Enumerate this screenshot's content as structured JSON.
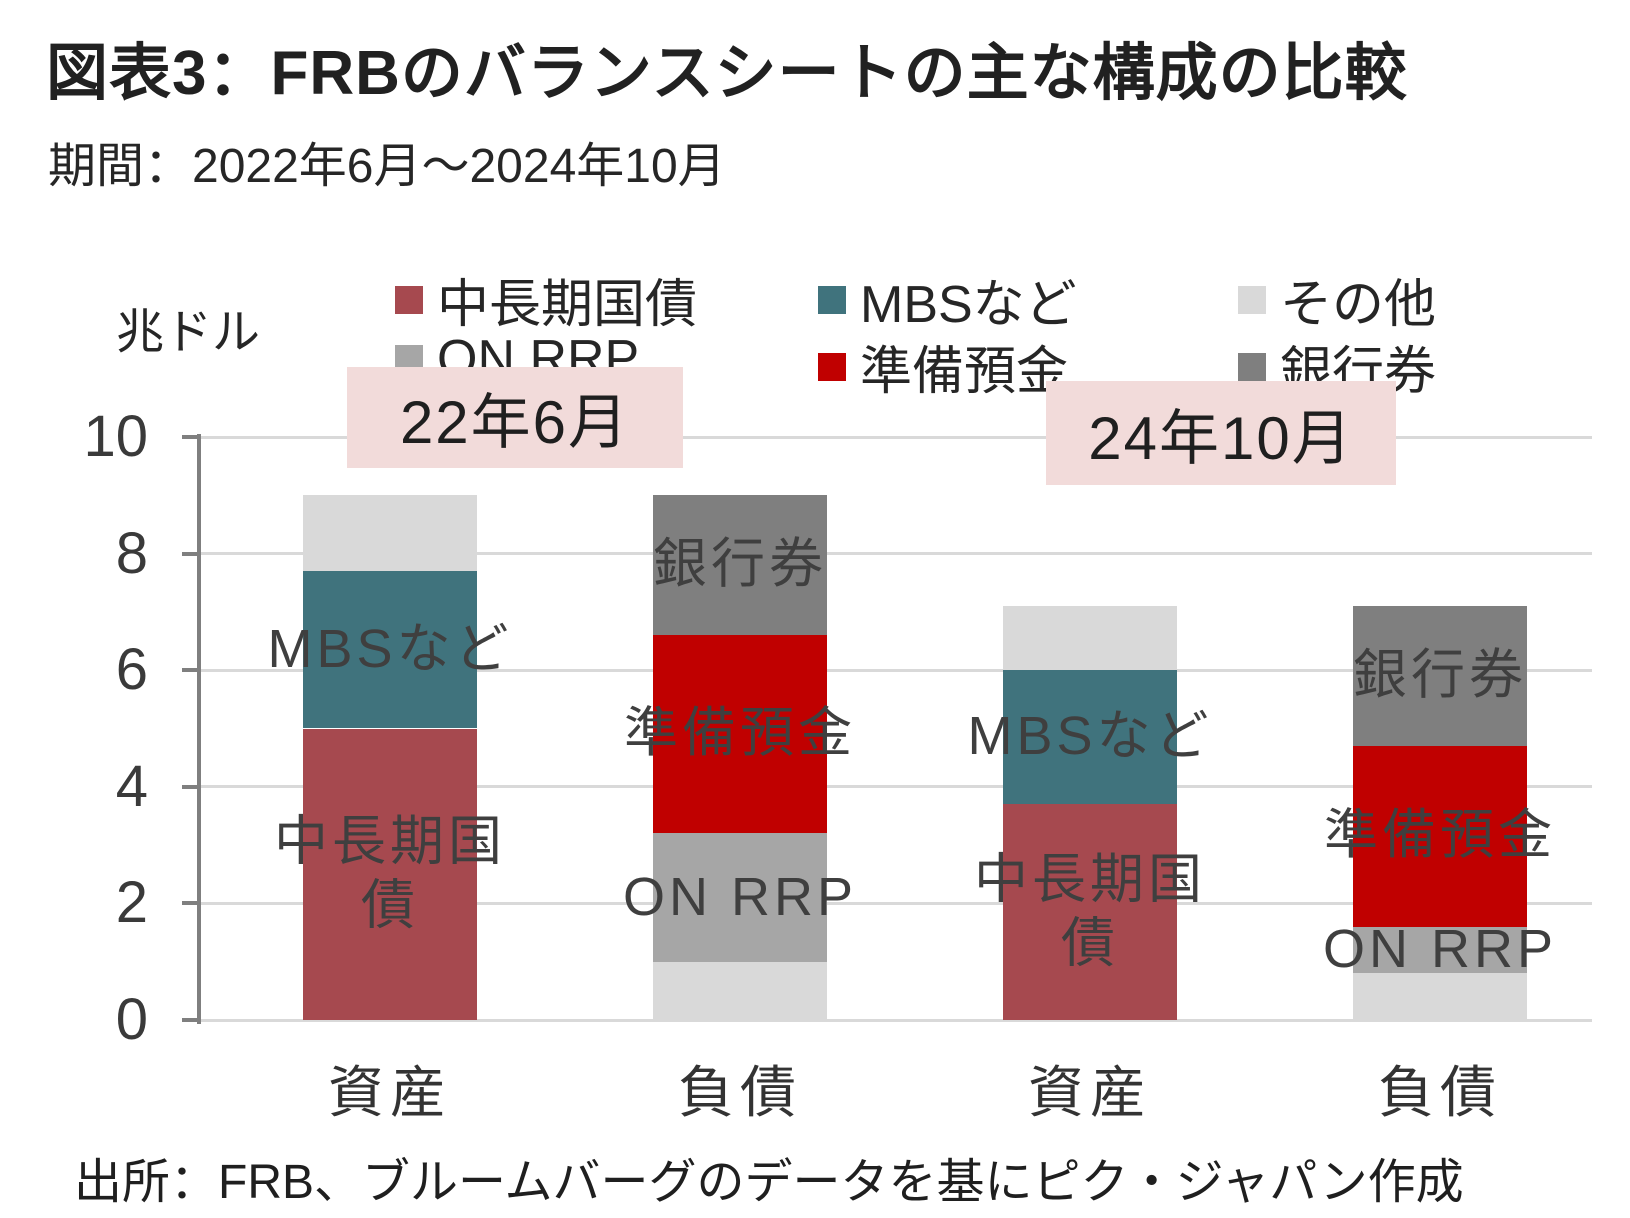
{
  "title": "図表3：FRBのバランスシートの主な構成の比較",
  "subtitle": "期間：2022年6月～2024年10月",
  "unit_label": "兆ドル",
  "source": "出所：FRB、ブルームバーグのデータを基にピク・ジャパン作成",
  "banners": [
    {
      "label": "22年6月"
    },
    {
      "label": "24年10月"
    }
  ],
  "colors": {
    "treasury": "#A6494F",
    "mbs": "#40737D",
    "other": "#D9D9D9",
    "on_rrp": "#A6A6A6",
    "reserves": "#C00000",
    "banknotes": "#7F7F7F",
    "banner_bg": "#F2DBDA",
    "gridline": "#D9D9D9",
    "axis": "#7F7F7F"
  },
  "chart_data": {
    "type": "bar",
    "stacked": true,
    "title": "図表3：FRBのバランスシートの主な構成の比較",
    "ylabel": "兆ドル",
    "ylim": [
      0,
      10
    ],
    "yticks": [
      0,
      2,
      4,
      6,
      8,
      10
    ],
    "grid": true,
    "legend_position": "top",
    "legend": [
      {
        "name": "中長期国債",
        "color": "#A6494F"
      },
      {
        "name": "MBSなど",
        "color": "#40737D"
      },
      {
        "name": "その他",
        "color": "#D9D9D9"
      },
      {
        "name": "ON RRP",
        "color": "#A6A6A6"
      },
      {
        "name": "準備預金",
        "color": "#C00000"
      },
      {
        "name": "銀行券",
        "color": "#7F7F7F"
      }
    ],
    "bars": [
      {
        "category": "資産",
        "period": "22年6月",
        "total": 9.0,
        "segments": [
          {
            "series": "中長期国債",
            "value": 5.0,
            "label": [
              "中長期国",
              "債"
            ]
          },
          {
            "series": "MBSなど",
            "value": 2.7,
            "label": [
              "MBSなど"
            ]
          },
          {
            "series": "その他",
            "value": 1.3
          }
        ]
      },
      {
        "category": "負債",
        "period": "22年6月",
        "total": 9.0,
        "segments": [
          {
            "series": "その他",
            "value": 1.0
          },
          {
            "series": "ON RRP",
            "value": 2.2,
            "label": [
              "ON RRP"
            ]
          },
          {
            "series": "準備預金",
            "value": 3.4,
            "label": [
              "準備預金"
            ]
          },
          {
            "series": "銀行券",
            "value": 2.4,
            "label": [
              "銀行券"
            ]
          }
        ]
      },
      {
        "category": "資産",
        "period": "24年10月",
        "total": 7.1,
        "segments": [
          {
            "series": "中長期国債",
            "value": 3.7,
            "label": [
              "中長期国",
              "債"
            ]
          },
          {
            "series": "MBSなど",
            "value": 2.3,
            "label": [
              "MBSなど"
            ]
          },
          {
            "series": "その他",
            "value": 1.1
          }
        ]
      },
      {
        "category": "負債",
        "period": "24年10月",
        "total": 7.1,
        "segments": [
          {
            "series": "その他",
            "value": 0.8
          },
          {
            "series": "ON RRP",
            "value": 0.8,
            "label": [
              "ON RRP"
            ]
          },
          {
            "series": "準備預金",
            "value": 3.1,
            "label": [
              "準備預金"
            ]
          },
          {
            "series": "銀行券",
            "value": 2.4,
            "label": [
              "銀行券"
            ]
          }
        ]
      }
    ]
  }
}
